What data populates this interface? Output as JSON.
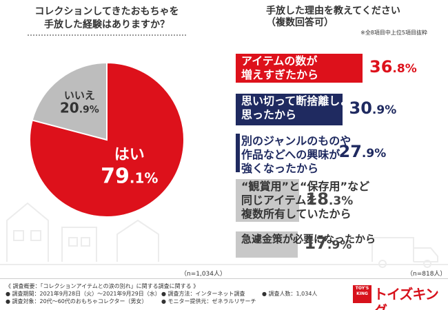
{
  "left_question": {
    "line1": "コレクションしてきたおもちゃを",
    "line2": "手放した経験はありますか？"
  },
  "right_question": {
    "line1": "手放した理由を教えてください",
    "line2": "（複数回答可）",
    "note": "※全8項目中上位5項目抜粋"
  },
  "colors": {
    "yes": "#dd111b",
    "no": "#bdbdbd",
    "navy": "#1f2a60",
    "grey": "#c8c8c8",
    "red": "#dd111b"
  },
  "chart_data": [
    {
      "type": "pie",
      "slices": [
        {
          "label": "はい",
          "value": 79.1,
          "display_big": "79",
          "display_small": ".1%"
        },
        {
          "label": "いいえ",
          "value": 20.9,
          "display_big": "20",
          "display_small": ".9%"
        }
      ],
      "note": "（n=1,034人）"
    },
    {
      "type": "bar",
      "categories": [
        "アイテムの数が\n増えすぎたから",
        "思い切って断捨離しようと\n思ったから",
        "別のジャンルのものや\n作品などへの興味が\n強くなったから",
        "“観賞用”と“保存用”など\n同じアイテムを\n複数所有していたから",
        "急遽金策が必要になったから"
      ],
      "values": [
        36.8,
        30.9,
        27.9,
        18.3,
        17.9
      ],
      "display_big": [
        "36",
        "30",
        "27",
        "18",
        "17"
      ],
      "display_small": [
        ".8%",
        ".9%",
        ".9%",
        ".3%",
        ".9%"
      ],
      "note": "（n=818人）"
    }
  ],
  "footer": {
    "line1": "《 調査概要：「コレクションアイテムとの涙の別れ」に関する調査に関する 》",
    "period": "● 調査期間：2021年9月28日（火）～2021年9月29日（水）",
    "method": "● 調査方法：インターネット調査",
    "count": "● 調査人数：1,034人",
    "target": "● 調査対象：20代～60代のおもちゃコレクター（男女）",
    "provider": "● モニター提供元：ゼネラルリサーチ"
  },
  "logo": {
    "box_line1": "TOY'S",
    "box_line2": "KING",
    "text": "トイズキング"
  }
}
